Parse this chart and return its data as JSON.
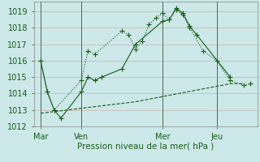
{
  "xlabel": "Pression niveau de la mer( hPa )",
  "bg_color": "#cce8e8",
  "grid_color": "#c8b4b4",
  "line_color": "#1a5c1a",
  "ylim": [
    1012,
    1019.6
  ],
  "yticks": [
    1012,
    1013,
    1014,
    1015,
    1016,
    1017,
    1018,
    1019
  ],
  "xtick_labels": [
    "Mar",
    "Ven",
    "Mer",
    "Jeu"
  ],
  "xtick_positions": [
    0,
    18,
    54,
    78
  ],
  "vline_positions": [
    0,
    18,
    54,
    78
  ],
  "xmin": -3,
  "xmax": 96,
  "line1_x": [
    0,
    3,
    6,
    18,
    21,
    24,
    36,
    39,
    42,
    45,
    48,
    51,
    54,
    57,
    60,
    63,
    66,
    72,
    78,
    84,
    90,
    93
  ],
  "line1_y": [
    1016.0,
    1014.1,
    1013.0,
    1014.8,
    1016.6,
    1016.4,
    1017.8,
    1017.6,
    1016.7,
    1017.2,
    1018.2,
    1018.6,
    1018.9,
    1018.5,
    1019.1,
    1018.8,
    1018.0,
    1016.6,
    1016.0,
    1014.8,
    1014.5,
    1014.6
  ],
  "line2_x": [
    0,
    3,
    6,
    9,
    18,
    21,
    24,
    27,
    36,
    42,
    54,
    57,
    60,
    63,
    66,
    69,
    84
  ],
  "line2_y": [
    1016.0,
    1014.1,
    1013.0,
    1012.5,
    1014.1,
    1015.0,
    1014.8,
    1015.0,
    1015.5,
    1017.0,
    1018.4,
    1018.5,
    1019.2,
    1018.9,
    1018.1,
    1017.6,
    1015.0
  ],
  "line3_x": [
    0,
    42,
    84,
    90
  ],
  "line3_y": [
    1012.8,
    1013.5,
    1014.6,
    1014.6
  ]
}
